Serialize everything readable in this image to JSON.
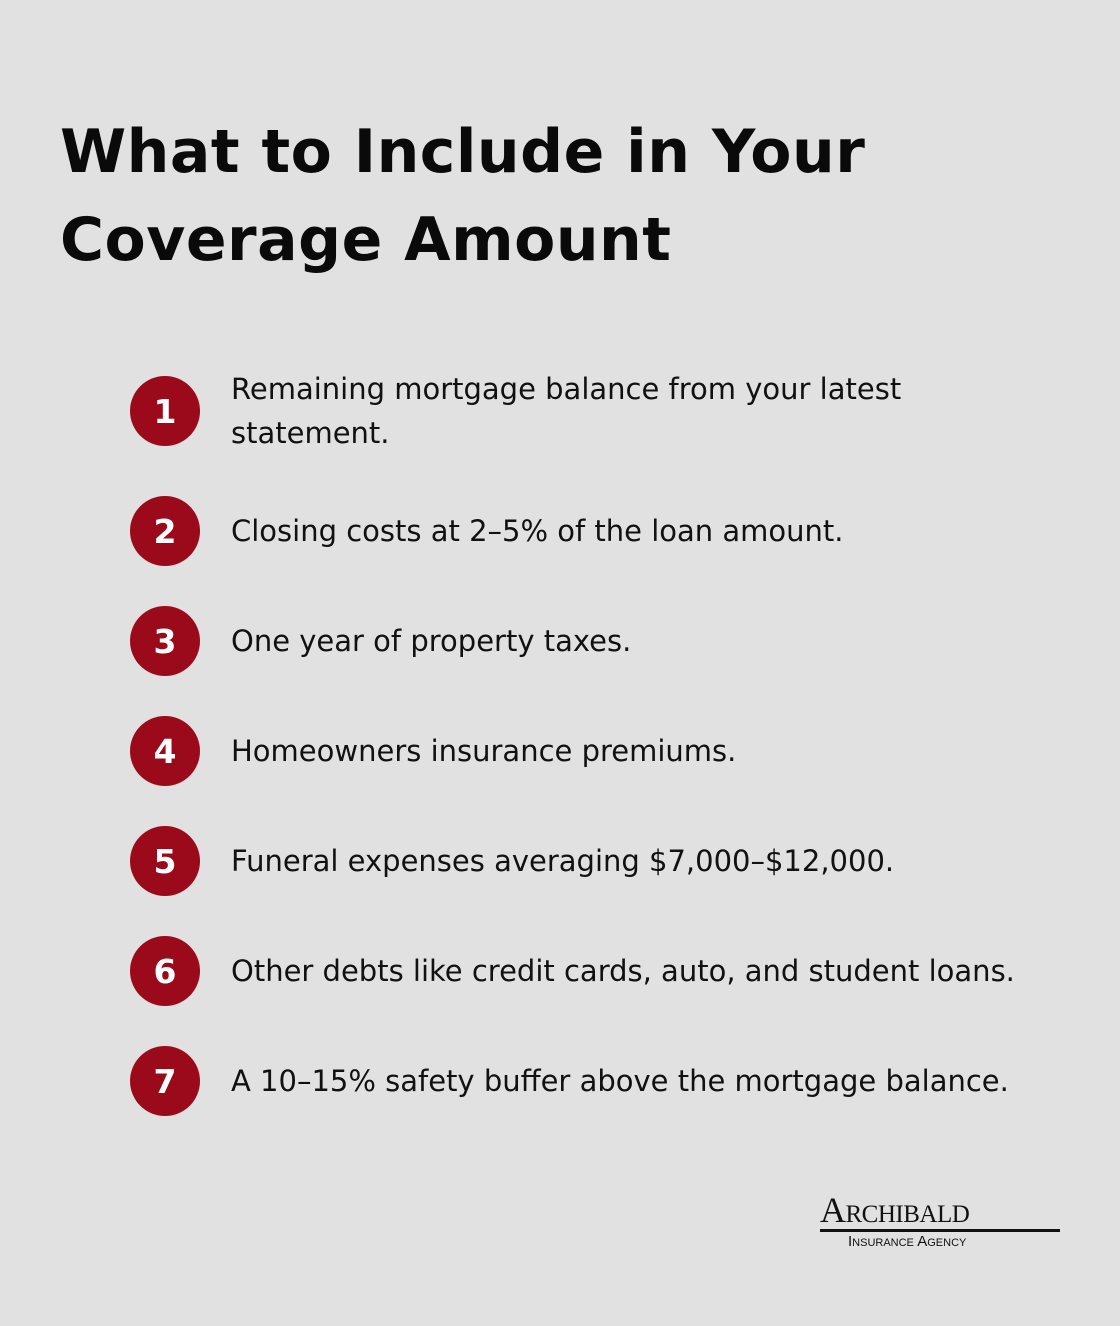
{
  "title": "What to Include in Your Coverage Amount",
  "accent_color": "#9b0a1a",
  "items": [
    {
      "number": "1",
      "text": "Remaining mortgage balance from your latest statement."
    },
    {
      "number": "2",
      "text": "Closing costs at 2–5% of the loan amount."
    },
    {
      "number": "3",
      "text": "One year of property taxes."
    },
    {
      "number": "4",
      "text": "Homeowners insurance premiums."
    },
    {
      "number": "5",
      "text": "Funeral expenses averaging $7,000–$12,000."
    },
    {
      "number": "6",
      "text": "Other debts like credit cards, auto, and student loans."
    },
    {
      "number": "7",
      "text": "A 10–15% safety buffer above the mortgage balance."
    }
  ],
  "logo": {
    "name": "Archibald",
    "tagline": "Insurance Agency"
  }
}
